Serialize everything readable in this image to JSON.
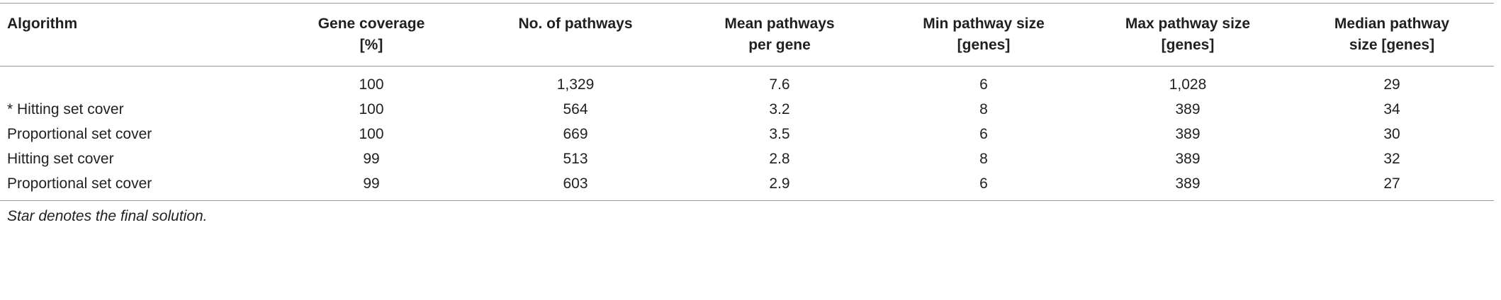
{
  "table": {
    "header": [
      "Algorithm",
      "Gene coverage\n[%]",
      "No. of pathways",
      "Mean pathways\nper gene",
      "Min pathway size\n[genes]",
      "Max pathway size\n[genes]",
      "Median pathway\nsize [genes]"
    ],
    "rows": [
      [
        null,
        "100",
        "1,329",
        "7.6",
        "6",
        "1,028",
        "29"
      ],
      [
        "* Hitting set cover",
        "100",
        "564",
        "3.2",
        "8",
        "389",
        "34"
      ],
      [
        "Proportional set cover",
        "100",
        "669",
        "3.5",
        "6",
        "389",
        "30"
      ],
      [
        "Hitting set cover",
        "99",
        "513",
        "2.8",
        "8",
        "389",
        "32"
      ],
      [
        "Proportional set cover",
        "99",
        "603",
        "2.9",
        "6",
        "389",
        "27"
      ]
    ]
  },
  "footnote": "Star denotes the final solution."
}
